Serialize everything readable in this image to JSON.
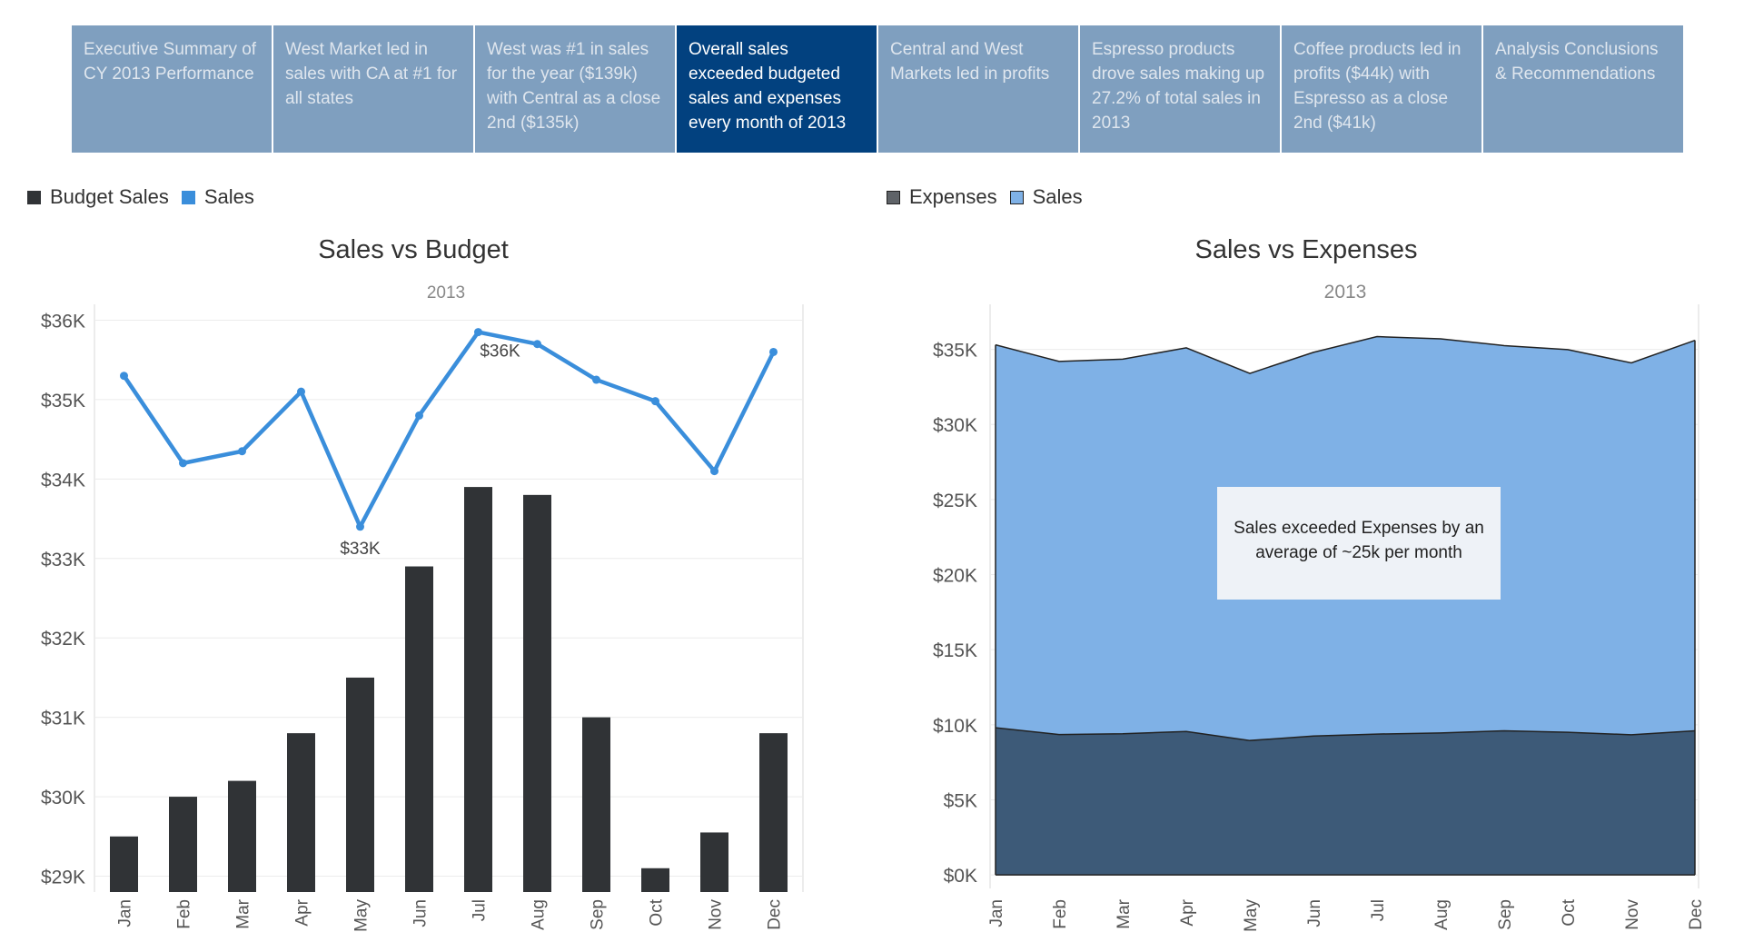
{
  "story": {
    "points": [
      {
        "label": "Executive Summary of CY 2013 Performance",
        "active": false
      },
      {
        "label": "West Market led in sales with CA at #1 for all states",
        "active": false
      },
      {
        "label": "West was #1 in sales for the year ($139k) with Central as a close 2nd ($135k)",
        "active": false
      },
      {
        "label": "Overall sales exceeded budgeted sales and expenses every month of 2013",
        "active": true
      },
      {
        "label": "Central and West Markets led in profits",
        "active": false
      },
      {
        "label": "Espresso products drove sales making up  27.2% of total sales in 2013",
        "active": false
      },
      {
        "label": "Coffee products led in profits ($44k) with Espresso as a close 2nd ($41k)",
        "active": false
      },
      {
        "label": "Analysis Conclusions & Recommendations",
        "active": false
      }
    ]
  },
  "legend_left": [
    {
      "label": "Budget Sales",
      "color": "#303336"
    },
    {
      "label": "Sales",
      "color": "#3a8edb"
    }
  ],
  "legend_right": [
    {
      "label": "Expenses",
      "color": "#5f6368"
    },
    {
      "label": "Sales",
      "color": "#7fb1e6"
    }
  ],
  "colors": {
    "budget_bar": "#303336",
    "sales_line": "#3a8edb",
    "area_sales": "#7fb1e6",
    "area_expenses": "#3d5a78",
    "gridline": "#ececec",
    "axis_text": "#555555"
  },
  "chart_data": [
    {
      "type": "bar",
      "title": "Sales vs Budget",
      "subtitle": "2013",
      "xlabel": "",
      "ylabel": "",
      "categories": [
        "Jan",
        "Feb",
        "Mar",
        "Apr",
        "May",
        "Jun",
        "Jul",
        "Aug",
        "Sep",
        "Oct",
        "Nov",
        "Dec"
      ],
      "ylim": [
        28800,
        36200
      ],
      "yticks": [
        29000,
        30000,
        31000,
        32000,
        33000,
        34000,
        35000,
        36000
      ],
      "ytick_labels": [
        "$29K",
        "$30K",
        "$31K",
        "$32K",
        "$33K",
        "$34K",
        "$35K",
        "$36K"
      ],
      "grid": true,
      "legend": "top-left",
      "series": [
        {
          "name": "Budget Sales",
          "kind": "bar",
          "values": [
            29500,
            30000,
            30200,
            30800,
            31500,
            32900,
            33900,
            33800,
            31000,
            29100,
            29550,
            30800
          ]
        },
        {
          "name": "Sales",
          "kind": "line",
          "values": [
            35300,
            34200,
            34350,
            35100,
            33400,
            34800,
            35850,
            35700,
            35250,
            34980,
            34100,
            35600
          ]
        }
      ],
      "annotations": [
        {
          "month": "Jul",
          "text": "$36K"
        },
        {
          "month": "May",
          "text": "$33K"
        }
      ]
    },
    {
      "type": "area",
      "title": "Sales vs Expenses",
      "subtitle": "2013",
      "xlabel": "",
      "ylabel": "",
      "categories": [
        "Jan",
        "Feb",
        "Mar",
        "Apr",
        "May",
        "Jun",
        "Jul",
        "Aug",
        "Sep",
        "Oct",
        "Nov",
        "Dec"
      ],
      "ylim": [
        -900,
        38000
      ],
      "yticks": [
        0,
        5000,
        10000,
        15000,
        20000,
        25000,
        30000,
        35000
      ],
      "ytick_labels": [
        "$0K",
        "$5K",
        "$10K",
        "$15K",
        "$20K",
        "$25K",
        "$30K",
        "$35K"
      ],
      "grid": true,
      "legend": "top-left",
      "series": [
        {
          "name": "Sales",
          "values": [
            35300,
            34200,
            34350,
            35100,
            33400,
            34800,
            35850,
            35700,
            35250,
            34980,
            34100,
            35600
          ]
        },
        {
          "name": "Expenses",
          "values": [
            9800,
            9350,
            9400,
            9550,
            8950,
            9250,
            9380,
            9450,
            9600,
            9500,
            9330,
            9600
          ]
        }
      ],
      "annotation_box": "Sales exceeded Expenses by an average of ~25k per month"
    }
  ]
}
